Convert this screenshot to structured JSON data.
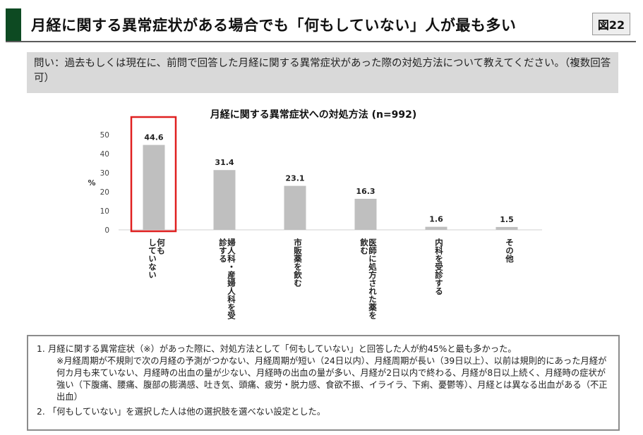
{
  "header": {
    "title": "月経に関する異常症状がある場合でも「何もしていない」人が最も多い",
    "figure_label": "図22"
  },
  "question": "問い：過去もしくは現在に、前問で回答した月経に関する異常症状があった際の対処方法について教えてください。（複数回答可）",
  "chart_data": {
    "type": "bar",
    "title": "月経に関する異常症状への対処方法 (n=992)",
    "ylabel": "%",
    "ylim": [
      0,
      50
    ],
    "yticks": [
      0,
      10,
      20,
      30,
      40,
      50
    ],
    "grid": false,
    "categories": [
      [
        "何も",
        "していない"
      ],
      [
        "婦人科・産婦人科を受",
        "診する"
      ],
      [
        "市販薬を飲む"
      ],
      [
        "医師に処方された薬を",
        "飲む"
      ],
      [
        "内科を受診する"
      ],
      [
        "その他"
      ]
    ],
    "values": [
      44.6,
      31.4,
      23.1,
      16.3,
      1.6,
      1.5
    ],
    "value_labels": [
      "44.6",
      "31.4",
      "23.1",
      "16.3",
      "1.6",
      "1.5"
    ],
    "bar_color": "#bfbfbf",
    "highlight_index": 0,
    "highlight_color": "#e02020"
  },
  "notes": [
    {
      "num": "1.",
      "text": "月経に関する異常症状（※）があった際に、対処方法として「何もしていない」と回答した人が約45%と最も多かった。",
      "sub": "※月経周期が不規則で次の月経の予測がつかない、月経周期が短い（24日以内）、月経周期が長い（39日以上）、以前は規則的にあった月経が何カ月も来ていない、月経時の出血の量が少ない、月経時の出血の量が多い、月経が2日以内で終わる、月経が8日以上続く、月経時の症状が強い（下腹痛、腰痛、腹部の膨満感、吐き気、頭痛、疲労・脱力感、食欲不振、イライラ、下痢、憂鬱等）、月経とは異なる出血がある（不正出血）"
    },
    {
      "num": "2.",
      "text": "「何もしていない」を選択した人は他の選択肢を選べない設定とした。"
    }
  ]
}
